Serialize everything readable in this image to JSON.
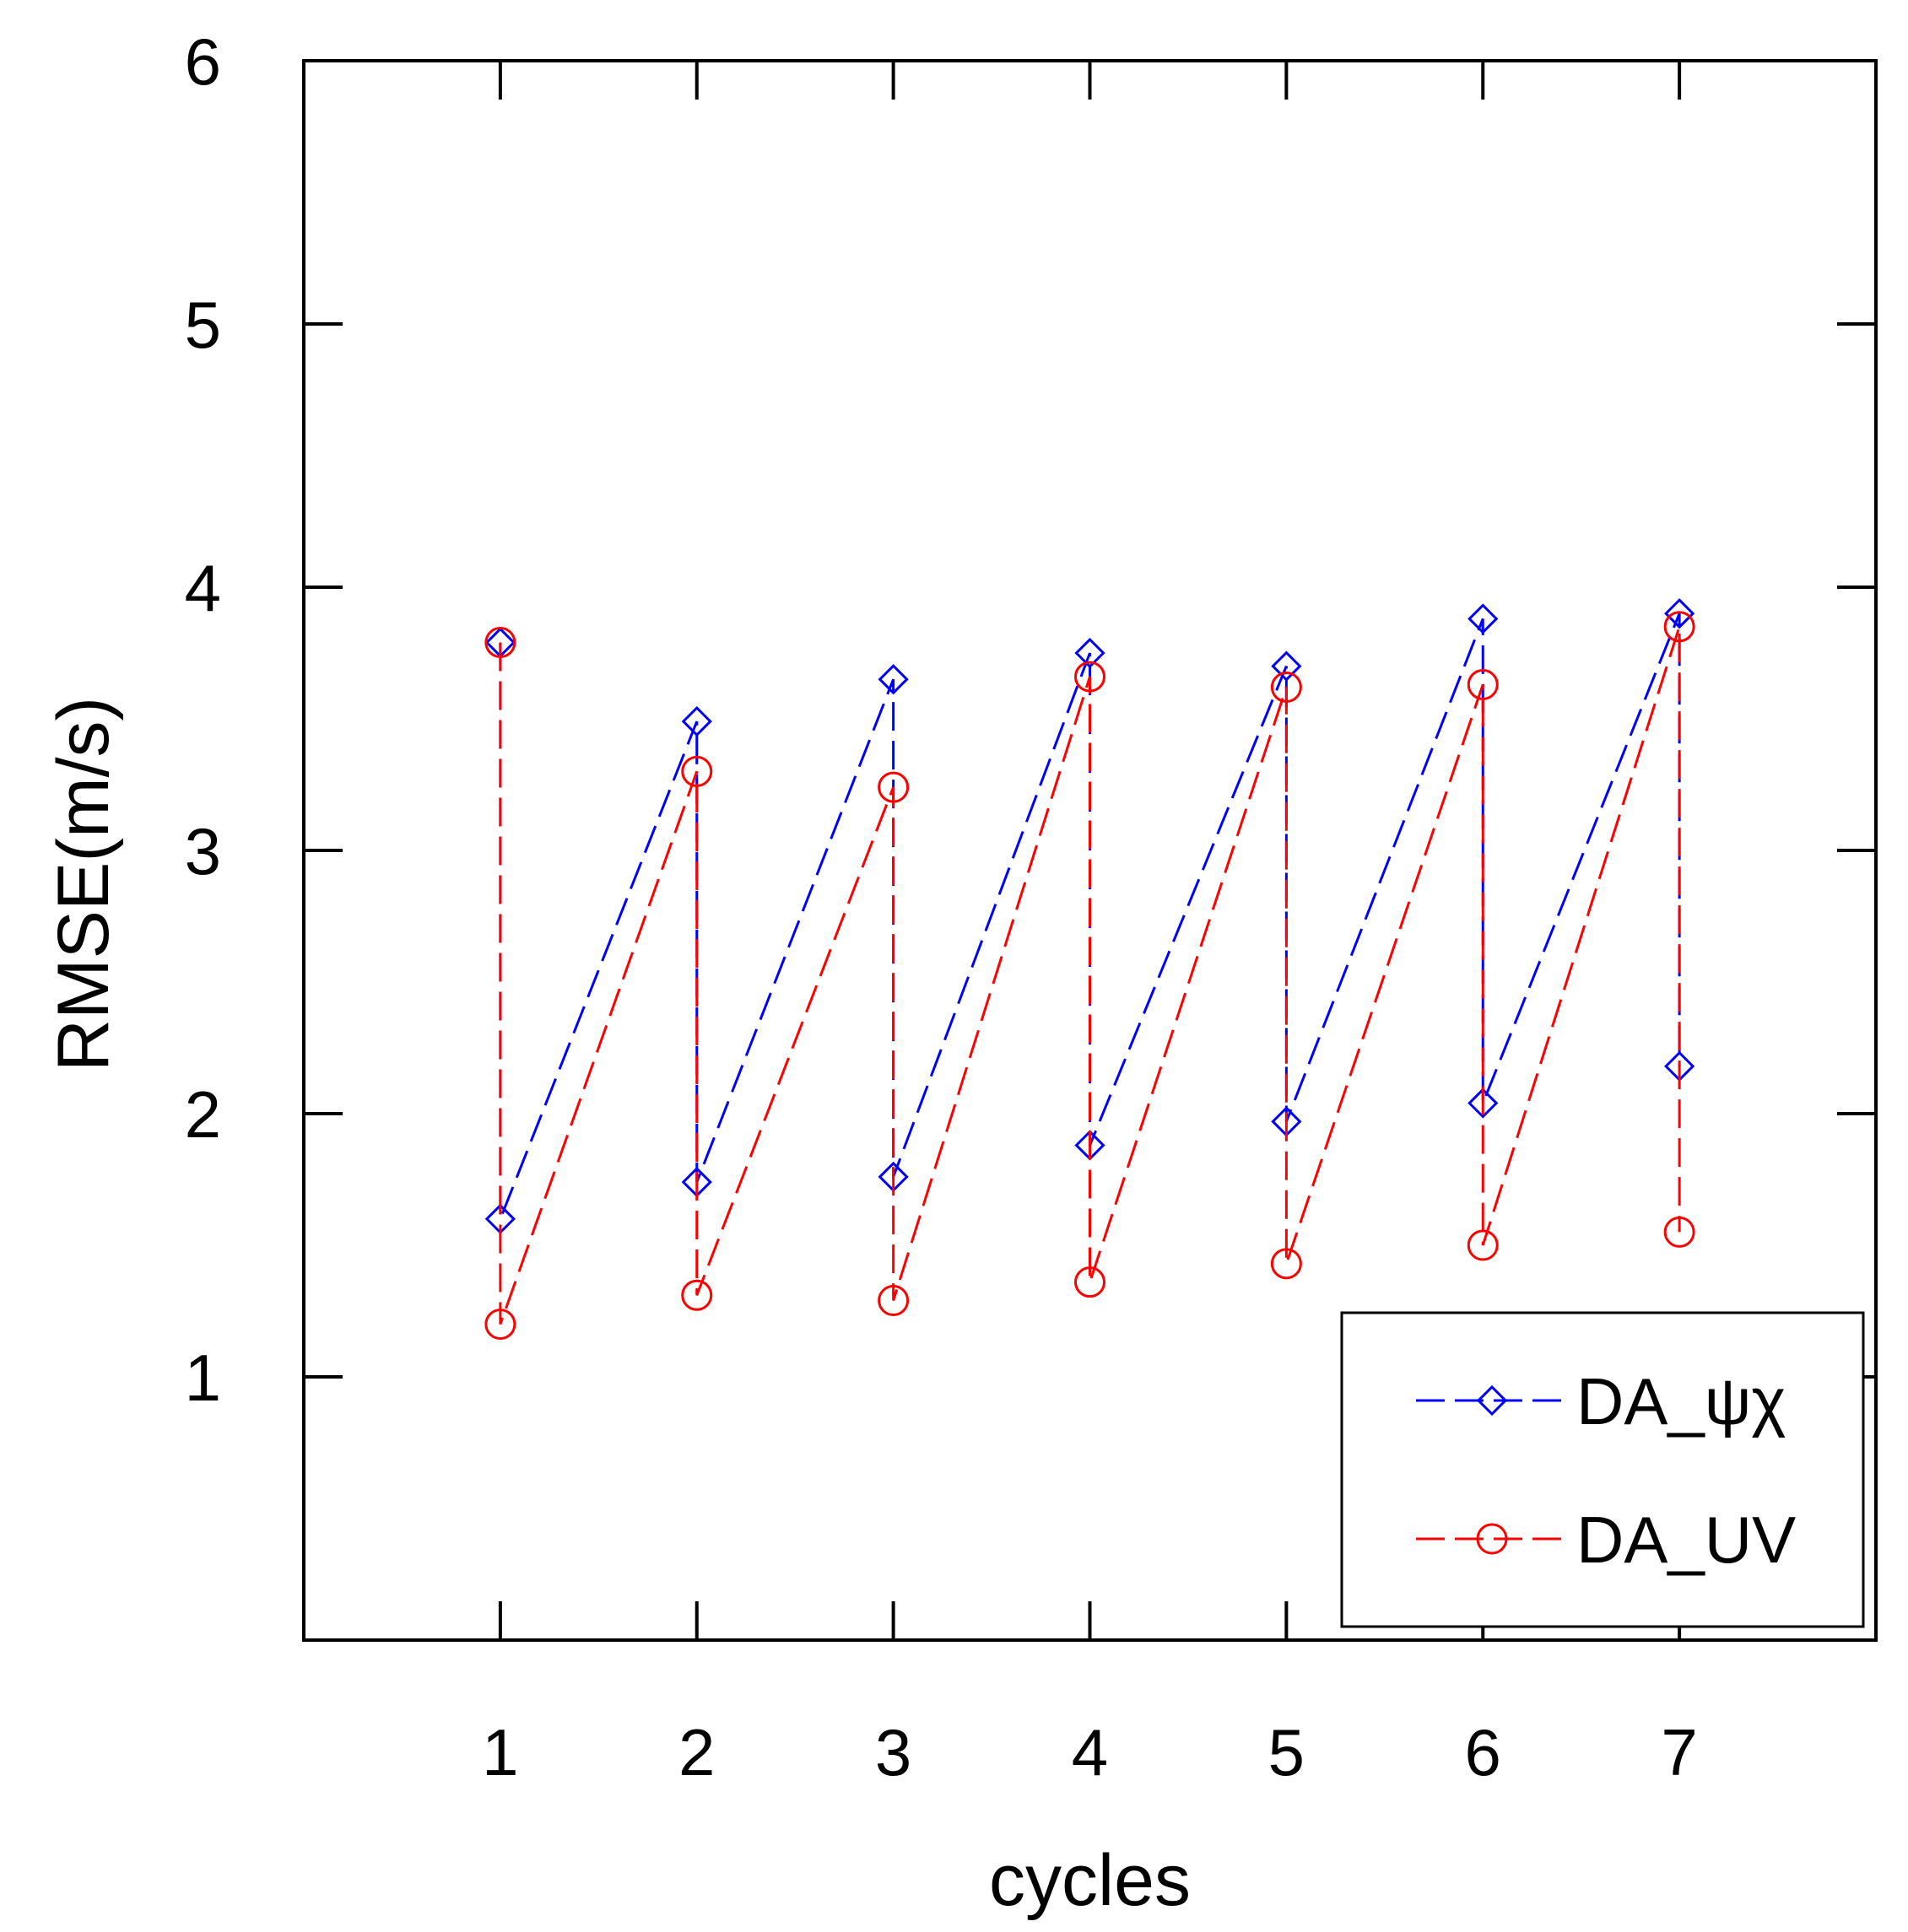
{
  "chart_data": {
    "type": "line",
    "xlabel": "cycles",
    "ylabel": "RMSE(m/s)",
    "xlim": [
      0,
      8
    ],
    "ylim": [
      0,
      6
    ],
    "xticks": [
      1,
      2,
      3,
      4,
      5,
      6,
      7
    ],
    "yticks": [
      1,
      2,
      3,
      4,
      5,
      6
    ],
    "legend_position": "bottom-right",
    "series": [
      {
        "name": "DA_ψχ",
        "color": "#0000ff",
        "marker": "diamond",
        "line_style": "dashed",
        "points": [
          {
            "x": 1,
            "y": 3.79
          },
          {
            "x": 1,
            "y": 1.6
          },
          {
            "x": 2,
            "y": 3.49
          },
          {
            "x": 2,
            "y": 1.74
          },
          {
            "x": 3,
            "y": 3.65
          },
          {
            "x": 3,
            "y": 1.76
          },
          {
            "x": 4,
            "y": 3.75
          },
          {
            "x": 4,
            "y": 1.88
          },
          {
            "x": 5,
            "y": 3.7
          },
          {
            "x": 5,
            "y": 1.97
          },
          {
            "x": 6,
            "y": 3.88
          },
          {
            "x": 6,
            "y": 2.04
          },
          {
            "x": 7,
            "y": 3.9
          },
          {
            "x": 7,
            "y": 2.18
          }
        ]
      },
      {
        "name": "DA_UV",
        "color": "#ff0000",
        "marker": "circle",
        "line_style": "dashed",
        "points": [
          {
            "x": 1,
            "y": 3.79
          },
          {
            "x": 1,
            "y": 1.2
          },
          {
            "x": 2,
            "y": 3.3
          },
          {
            "x": 2,
            "y": 1.31
          },
          {
            "x": 3,
            "y": 3.24
          },
          {
            "x": 3,
            "y": 1.29
          },
          {
            "x": 4,
            "y": 3.66
          },
          {
            "x": 4,
            "y": 1.36
          },
          {
            "x": 5,
            "y": 3.62
          },
          {
            "x": 5,
            "y": 1.43
          },
          {
            "x": 6,
            "y": 3.63
          },
          {
            "x": 6,
            "y": 1.5
          },
          {
            "x": 7,
            "y": 3.85
          },
          {
            "x": 7,
            "y": 1.55
          }
        ]
      }
    ]
  }
}
